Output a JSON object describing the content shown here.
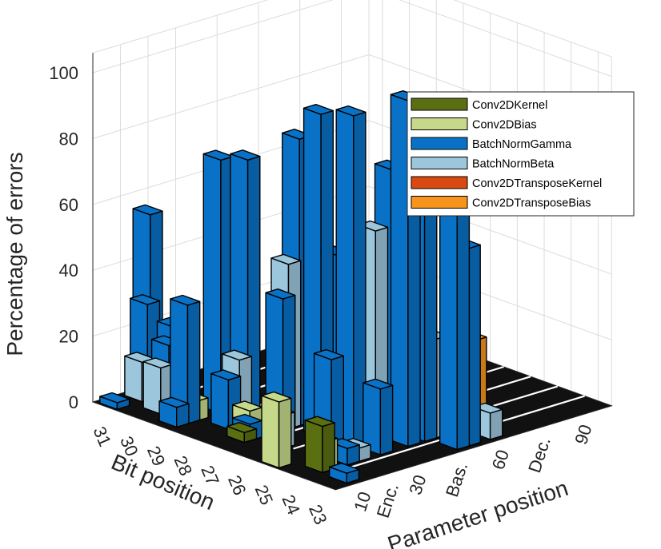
{
  "chart_data": {
    "type": "bar3d",
    "zlabel": "Percentage of errors",
    "xlabel": "Bit position",
    "ylabel": "Parameter position",
    "zlim": [
      0,
      100
    ],
    "z_ticks": [
      "0",
      "20",
      "40",
      "60",
      "80",
      "100"
    ],
    "bit_ticks": [
      "31",
      "30",
      "29",
      "28",
      "27",
      "26",
      "25",
      "24",
      "23"
    ],
    "param_ticks": [
      "10",
      "Enc.",
      "30",
      "Bas.",
      "60",
      "Dec.",
      "90"
    ],
    "legend_position": "top-right",
    "grid": true,
    "series": [
      {
        "name": "Conv2DKernel",
        "color": "#5a6e12",
        "values": [
          [
            30,
            10,
            7
          ],
          [
            24,
            9,
            14
          ],
          [
            27,
            10,
            3
          ]
        ]
      },
      {
        "name": "Conv2DBias",
        "color": "#c6d98a",
        "values": [
          [
            29,
            12,
            6
          ],
          [
            27,
            12,
            9
          ],
          [
            25,
            3,
            20
          ],
          [
            24,
            10,
            9
          ],
          [
            28,
            16,
            6
          ]
        ]
      },
      {
        "name": "BatchNormGamma",
        "color": "#0a72c6",
        "values": [
          [
            31,
            15,
            56
          ],
          [
            31,
            14,
            29
          ],
          [
            31,
            3,
            2
          ],
          [
            31,
            18,
            2
          ],
          [
            30,
            14,
            25
          ],
          [
            30,
            12,
            20
          ],
          [
            30,
            18,
            3
          ],
          [
            29,
            21,
            77
          ],
          [
            29,
            9,
            36
          ],
          [
            29,
            5,
            6
          ],
          [
            28,
            21,
            80
          ],
          [
            28,
            14,
            15
          ],
          [
            27,
            30,
            87
          ],
          [
            27,
            24,
            40
          ],
          [
            27,
            44,
            48
          ],
          [
            27,
            12,
            5
          ],
          [
            26,
            28,
            98
          ],
          [
            26,
            44,
            57
          ],
          [
            25,
            30,
            100
          ],
          [
            25,
            44,
            80
          ],
          [
            25,
            22,
            28
          ],
          [
            24,
            40,
            105
          ],
          [
            24,
            46,
            72
          ],
          [
            24,
            30,
            20
          ],
          [
            24,
            18,
            5
          ],
          [
            23,
            48,
            99
          ],
          [
            23,
            52,
            60
          ],
          [
            23,
            8,
            3
          ]
        ]
      },
      {
        "name": "BatchNormBeta",
        "color": "#9cc6dc",
        "values": [
          [
            31,
            12,
            12
          ],
          [
            30,
            9,
            14
          ],
          [
            29,
            24,
            34
          ],
          [
            28,
            18,
            20
          ],
          [
            27,
            26,
            50
          ],
          [
            26,
            14,
            10
          ],
          [
            25,
            38,
            63
          ],
          [
            24,
            50,
            30
          ],
          [
            24,
            22,
            4
          ],
          [
            23,
            60,
            8
          ]
        ]
      },
      {
        "name": "Conv2DTransposeKernel",
        "color": "#d94a12",
        "values": [
          [
            30,
            72,
            4
          ],
          [
            29,
            66,
            3
          ],
          [
            28,
            72,
            2
          ],
          [
            27,
            80,
            2
          ],
          [
            25,
            70,
            3
          ]
        ]
      },
      {
        "name": "Conv2DTransposeBias",
        "color": "#f7941d",
        "values": [
          [
            31,
            86,
            6
          ],
          [
            30,
            82,
            9
          ],
          [
            29,
            78,
            5
          ],
          [
            28,
            84,
            7
          ],
          [
            27,
            72,
            4
          ],
          [
            26,
            68,
            3
          ],
          [
            25,
            62,
            10
          ],
          [
            24,
            64,
            26
          ]
        ]
      }
    ]
  }
}
